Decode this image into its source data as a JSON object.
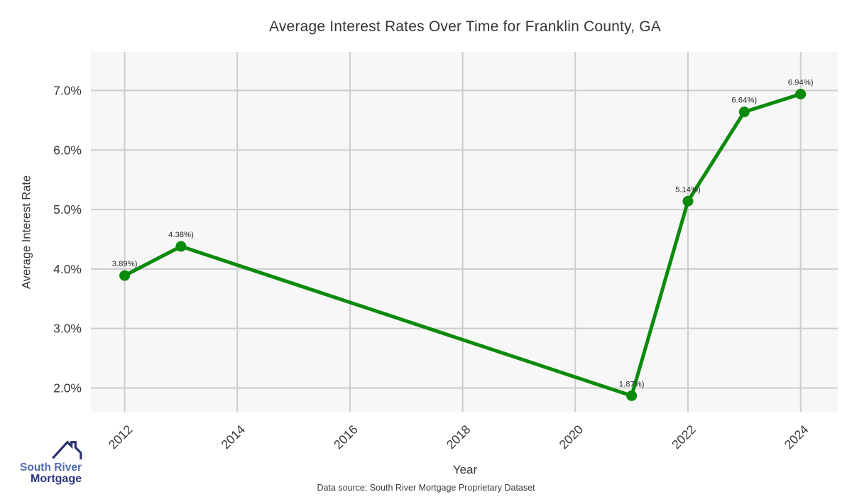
{
  "chart_data": {
    "type": "line",
    "title": "Average Interest Rates Over Time for Franklin County, GA",
    "xlabel": "Year",
    "ylabel": "Average Interest Rate",
    "x": [
      2012,
      2013,
      2021,
      2022,
      2023,
      2024
    ],
    "values": [
      3.89,
      4.38,
      1.87,
      5.14,
      6.64,
      6.94
    ],
    "point_labels": [
      "3.89%)",
      "4.38%)",
      "1.87%)",
      "5.14%)",
      "6.64%)",
      "6.94%)"
    ],
    "x_ticks": [
      2012,
      2014,
      2016,
      2018,
      2020,
      2022,
      2024
    ],
    "x_tick_labels": [
      "2012",
      "2014",
      "2016",
      "2018",
      "2020",
      "2022",
      "2024"
    ],
    "y_ticks": [
      2.0,
      3.0,
      4.0,
      5.0,
      6.0,
      7.0
    ],
    "y_tick_labels": [
      "2.0%",
      "3.0%",
      "4.0%",
      "5.0%",
      "6.0%",
      "7.0%"
    ],
    "xlim": [
      2011.4,
      2024.66
    ],
    "ylim": [
      1.6,
      7.65
    ],
    "grid": true,
    "legend": "none",
    "line_color": "#0b8a0b",
    "plot_bg": "#f7f7f7",
    "grid_color": "#cdcdcd",
    "tick_color": "#363636",
    "point_label_color": "#2a2a2a"
  },
  "footer": {
    "source": "Data source: South River Mortgage Proprietary Dataset"
  },
  "logo": {
    "line1": "South River",
    "line2": "Mortgage",
    "line1_color": "#4f6cb3",
    "line2_color": "#2c3480",
    "roof_color": "#2a3370"
  }
}
